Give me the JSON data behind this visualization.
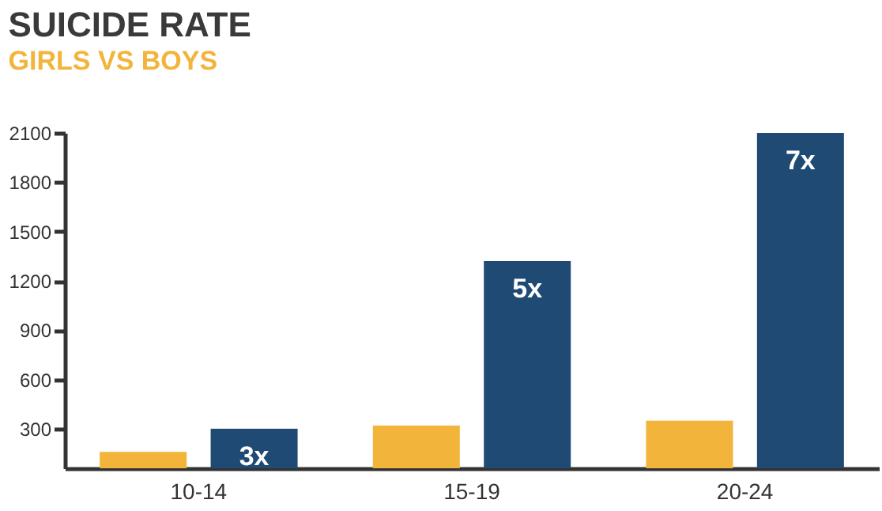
{
  "chart_data": {
    "type": "bar",
    "title": "SUICIDE RATE",
    "subtitle": "GIRLS VS BOYS",
    "categories": [
      "10-14",
      "15-19",
      "20-24"
    ],
    "series": [
      {
        "color": "#f2b43a",
        "values": [
          160,
          320,
          350
        ]
      },
      {
        "color": "#1f4a73",
        "values": [
          300,
          1320,
          2100
        ]
      }
    ],
    "annotations": [
      "3x",
      "5x",
      "7x"
    ],
    "ylim": [
      60,
      2100
    ],
    "yticks": [
      300,
      600,
      900,
      1200,
      1500,
      1800,
      2100
    ],
    "grid": false
  }
}
